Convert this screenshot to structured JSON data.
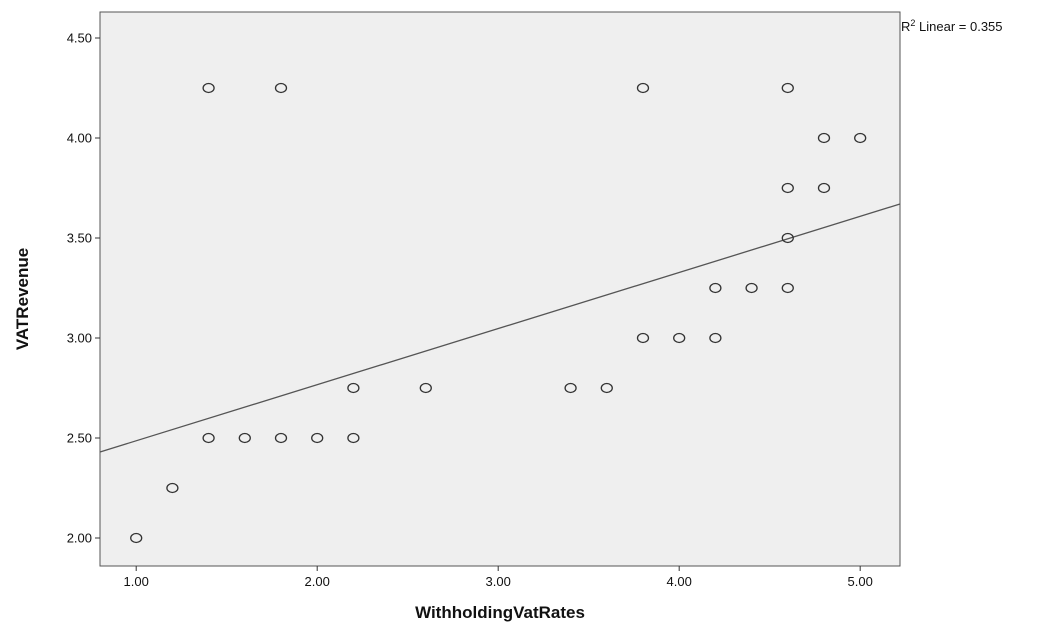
{
  "chart_data": {
    "type": "scatter",
    "xlabel": "WithholdingVatRates",
    "ylabel": "VATRevenue",
    "xlim": [
      0.8,
      5.22
    ],
    "ylim": [
      1.86,
      4.63
    ],
    "x_ticks": [
      "1.00",
      "2.00",
      "3.00",
      "4.00",
      "5.00"
    ],
    "y_ticks": [
      "2.00",
      "2.50",
      "3.00",
      "3.50",
      "4.00",
      "4.50"
    ],
    "grid": false,
    "background": "#efefef",
    "marker_color": "#333333",
    "points": [
      {
        "x": 1.0,
        "y": 2.0
      },
      {
        "x": 1.2,
        "y": 2.25
      },
      {
        "x": 1.4,
        "y": 2.5
      },
      {
        "x": 1.4,
        "y": 4.25
      },
      {
        "x": 1.6,
        "y": 2.5
      },
      {
        "x": 1.8,
        "y": 2.5
      },
      {
        "x": 1.8,
        "y": 4.25
      },
      {
        "x": 2.0,
        "y": 2.5
      },
      {
        "x": 2.2,
        "y": 2.5
      },
      {
        "x": 2.2,
        "y": 2.75
      },
      {
        "x": 2.6,
        "y": 2.75
      },
      {
        "x": 3.4,
        "y": 2.75
      },
      {
        "x": 3.6,
        "y": 2.75
      },
      {
        "x": 3.8,
        "y": 3.0
      },
      {
        "x": 3.8,
        "y": 4.25
      },
      {
        "x": 4.0,
        "y": 3.0
      },
      {
        "x": 4.2,
        "y": 3.0
      },
      {
        "x": 4.2,
        "y": 3.25
      },
      {
        "x": 4.4,
        "y": 3.25
      },
      {
        "x": 4.6,
        "y": 3.25
      },
      {
        "x": 4.6,
        "y": 3.5
      },
      {
        "x": 4.6,
        "y": 3.75
      },
      {
        "x": 4.6,
        "y": 4.25
      },
      {
        "x": 4.8,
        "y": 3.75
      },
      {
        "x": 4.8,
        "y": 4.0
      },
      {
        "x": 5.0,
        "y": 4.0
      }
    ],
    "fit_line": {
      "type": "linear",
      "r2_prefix": "R",
      "r2_superscript": "2",
      "r2_suffix": " Linear = 0.355",
      "start": {
        "x": 0.8,
        "y": 2.43
      },
      "end": {
        "x": 5.22,
        "y": 3.67
      }
    }
  }
}
